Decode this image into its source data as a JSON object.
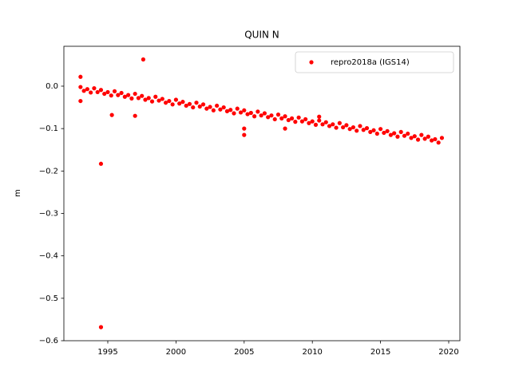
{
  "chart_data": {
    "type": "scatter",
    "title": "QUIN N",
    "ylabel": "m",
    "xlim": [
      1991.78,
      2020.82
    ],
    "ylim": [
      -0.6,
      0.094
    ],
    "xticks": [
      1995,
      2000,
      2005,
      2010,
      2015,
      2020
    ],
    "yticks": [
      {
        "value": 0,
        "label": "0.0"
      },
      {
        "value": -0.1,
        "label": "−0.1"
      },
      {
        "value": -0.2,
        "label": "−0.2"
      },
      {
        "value": -0.3,
        "label": "−0.3"
      },
      {
        "value": -0.4,
        "label": "−0.4"
      },
      {
        "value": -0.5,
        "label": "−0.5"
      },
      {
        "value": -0.6,
        "label": "−0.6"
      }
    ],
    "grid": false,
    "legend": "upper right",
    "series": [
      {
        "name": "repro2018a (IGS14)",
        "color": "#ff0000",
        "x": [
          1993,
          1993.25,
          1993.5,
          1993.75,
          1994,
          1994.25,
          1994.5,
          1994.75,
          1995,
          1995.25,
          1995.5,
          1995.75,
          1996,
          1996.25,
          1996.5,
          1996.75,
          1997,
          1997.25,
          1997.5,
          1997.75,
          1998,
          1998.25,
          1998.5,
          1998.75,
          1999,
          1999.25,
          1999.5,
          1999.75,
          2000,
          2000.25,
          2000.5,
          2000.75,
          2001,
          2001.25,
          2001.5,
          2001.75,
          2002,
          2002.25,
          2002.5,
          2002.75,
          2003,
          2003.25,
          2003.5,
          2003.75,
          2004,
          2004.25,
          2004.5,
          2004.75,
          2005,
          2005.25,
          2005.5,
          2005.75,
          2006,
          2006.25,
          2006.5,
          2006.75,
          2007,
          2007.25,
          2007.5,
          2007.75,
          2008,
          2008.25,
          2008.5,
          2008.75,
          2009,
          2009.25,
          2009.5,
          2009.75,
          2010,
          2010.25,
          2010.5,
          2010.75,
          2011,
          2011.25,
          2011.5,
          2011.75,
          2012,
          2012.25,
          2012.5,
          2012.75,
          2013,
          2013.25,
          2013.5,
          2013.75,
          2014,
          2014.25,
          2014.5,
          2014.75,
          2015,
          2015.25,
          2015.5,
          2015.75,
          2016,
          2016.25,
          2016.5,
          2016.75,
          2017,
          2017.25,
          2017.5,
          2017.75,
          2018,
          2018.25,
          2018.5,
          2018.75,
          2019,
          2019.25,
          2019.5,
          1993.0,
          1993.0,
          1994.5,
          1994.5,
          1995.3,
          1997.0,
          1997.6,
          2005.0,
          2005.0,
          2008.0,
          2010.5
        ],
        "values": [
          -0.002,
          -0.011,
          -0.007,
          -0.015,
          -0.005,
          -0.014,
          -0.009,
          -0.018,
          -0.014,
          -0.022,
          -0.012,
          -0.021,
          -0.016,
          -0.025,
          -0.021,
          -0.029,
          -0.018,
          -0.028,
          -0.023,
          -0.032,
          -0.028,
          -0.036,
          -0.025,
          -0.034,
          -0.03,
          -0.039,
          -0.035,
          -0.043,
          -0.032,
          -0.041,
          -0.037,
          -0.046,
          -0.042,
          -0.05,
          -0.039,
          -0.048,
          -0.043,
          -0.053,
          -0.049,
          -0.057,
          -0.046,
          -0.055,
          -0.05,
          -0.059,
          -0.056,
          -0.064,
          -0.053,
          -0.062,
          -0.057,
          -0.066,
          -0.063,
          -0.071,
          -0.06,
          -0.069,
          -0.064,
          -0.073,
          -0.069,
          -0.078,
          -0.067,
          -0.076,
          -0.071,
          -0.08,
          -0.076,
          -0.084,
          -0.074,
          -0.083,
          -0.078,
          -0.087,
          -0.083,
          -0.091,
          -0.081,
          -0.09,
          -0.085,
          -0.094,
          -0.09,
          -0.098,
          -0.087,
          -0.097,
          -0.092,
          -0.101,
          -0.097,
          -0.105,
          -0.094,
          -0.103,
          -0.099,
          -0.108,
          -0.104,
          -0.112,
          -0.101,
          -0.11,
          -0.106,
          -0.115,
          -0.111,
          -0.119,
          -0.108,
          -0.117,
          -0.112,
          -0.122,
          -0.118,
          -0.126,
          -0.115,
          -0.124,
          -0.119,
          -0.128,
          -0.125,
          -0.133,
          -0.122,
          0.022,
          -0.035,
          -0.183,
          -0.568,
          -0.068,
          -0.07,
          0.063,
          -0.115,
          -0.1,
          -0.1,
          -0.072
        ]
      }
    ]
  }
}
